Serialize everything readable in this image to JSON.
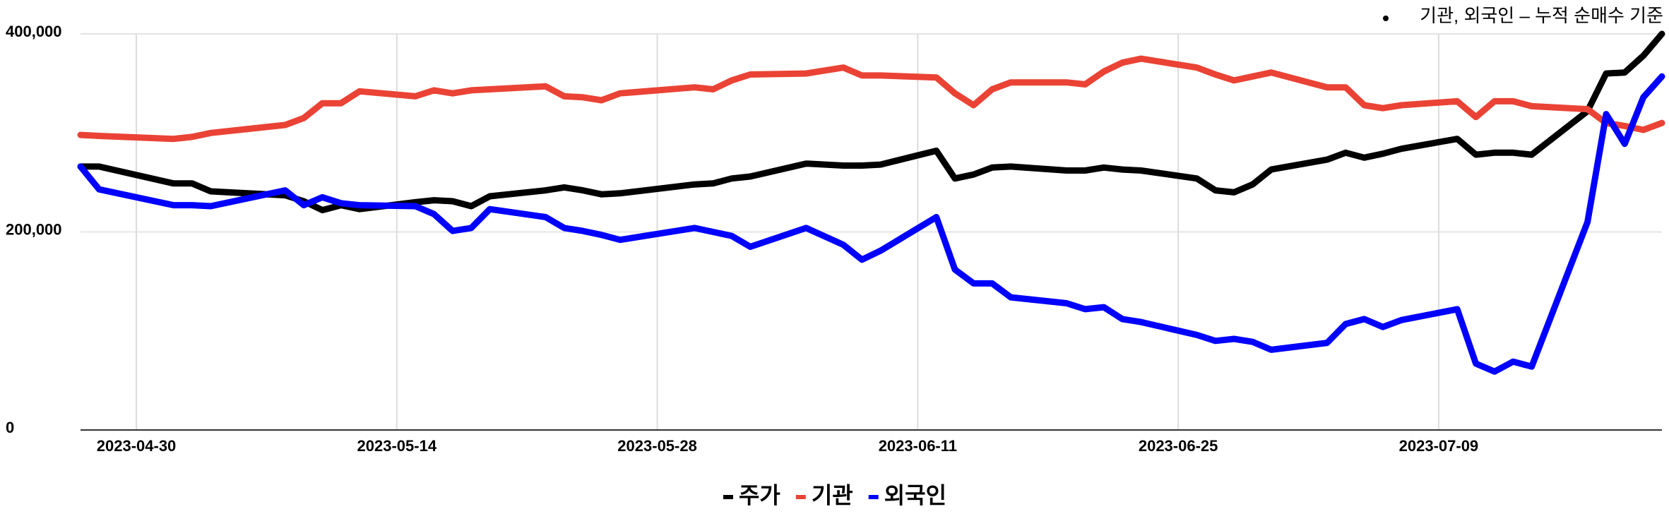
{
  "chart_data": {
    "type": "line",
    "annotation": "기관, 외국인 – 누적 순매수 기준",
    "x": [
      "2023-04-27",
      "2023-04-28",
      "2023-05-02",
      "2023-05-03",
      "2023-05-04",
      "2023-05-08",
      "2023-05-09",
      "2023-05-10",
      "2023-05-11",
      "2023-05-12",
      "2023-05-15",
      "2023-05-16",
      "2023-05-17",
      "2023-05-18",
      "2023-05-19",
      "2023-05-22",
      "2023-05-23",
      "2023-05-24",
      "2023-05-25",
      "2023-05-26",
      "2023-05-30",
      "2023-05-31",
      "2023-06-01",
      "2023-06-02",
      "2023-06-05",
      "2023-06-07",
      "2023-06-08",
      "2023-06-09",
      "2023-06-12",
      "2023-06-13",
      "2023-06-14",
      "2023-06-15",
      "2023-06-16",
      "2023-06-19",
      "2023-06-20",
      "2023-06-21",
      "2023-06-22",
      "2023-06-23",
      "2023-06-26",
      "2023-06-27",
      "2023-06-28",
      "2023-06-29",
      "2023-06-30",
      "2023-07-03",
      "2023-07-04",
      "2023-07-05",
      "2023-07-06",
      "2023-07-07",
      "2023-07-10",
      "2023-07-11",
      "2023-07-12",
      "2023-07-13",
      "2023-07-14",
      "2023-07-17",
      "2023-07-18",
      "2023-07-19",
      "2023-07-20",
      "2023-07-21"
    ],
    "series": [
      {
        "name": "주가",
        "color": "#000000",
        "values": [
          266000,
          266000,
          249000,
          249000,
          241000,
          237000,
          231000,
          222000,
          227000,
          223000,
          230000,
          232000,
          231000,
          226000,
          236000,
          242000,
          245000,
          242000,
          238000,
          239000,
          248000,
          249000,
          254000,
          256000,
          269000,
          267000,
          267000,
          268000,
          282000,
          254000,
          258000,
          265000,
          266000,
          262000,
          262000,
          265000,
          263000,
          262000,
          254000,
          242000,
          240000,
          248000,
          263000,
          273000,
          280000,
          275000,
          279000,
          284000,
          294000,
          278000,
          280000,
          280000,
          278000,
          322000,
          360000,
          361000,
          378000,
          400000
        ]
      },
      {
        "name": "기관",
        "color": "#ea4335",
        "values": [
          298000,
          297000,
          294000,
          296000,
          300000,
          308000,
          315000,
          330000,
          330000,
          342000,
          337000,
          343000,
          340000,
          343000,
          344000,
          347000,
          337000,
          336000,
          333000,
          340000,
          346000,
          344000,
          353000,
          359000,
          360000,
          366000,
          358000,
          358000,
          356000,
          340000,
          328000,
          344000,
          351000,
          351000,
          349000,
          362000,
          371000,
          375000,
          366000,
          359000,
          353000,
          357000,
          361000,
          346000,
          346000,
          328000,
          325000,
          328000,
          332000,
          316000,
          332000,
          332000,
          327000,
          324000,
          310000,
          307000,
          303000,
          310000
        ]
      },
      {
        "name": "외국인",
        "color": "#0000ff",
        "values": [
          266000,
          243000,
          227000,
          227000,
          226000,
          242000,
          227000,
          235000,
          229000,
          227000,
          226000,
          218000,
          201000,
          204000,
          223000,
          215000,
          204000,
          201000,
          197000,
          192000,
          204000,
          200000,
          196000,
          185000,
          204000,
          187000,
          172000,
          181000,
          215000,
          162000,
          148000,
          148000,
          134000,
          128000,
          122000,
          124000,
          112000,
          109000,
          96000,
          90000,
          92000,
          89000,
          81000,
          88000,
          107000,
          112000,
          104000,
          111000,
          122000,
          67000,
          59000,
          69000,
          64000,
          210000,
          319000,
          289000,
          336000,
          357000
        ]
      }
    ],
    "xlim": [
      "2023-04-27",
      "2023-07-21"
    ],
    "xticks": [
      "2023-04-30",
      "2023-05-14",
      "2023-05-28",
      "2023-06-11",
      "2023-06-25",
      "2023-07-09"
    ],
    "ylim": [
      0,
      400000
    ],
    "yticks": [
      {
        "value": 0,
        "label": "0"
      },
      {
        "value": 200000,
        "label": "200,000"
      },
      {
        "value": 400000,
        "label": "400,000"
      }
    ],
    "grid": true,
    "legend": "bottom"
  }
}
